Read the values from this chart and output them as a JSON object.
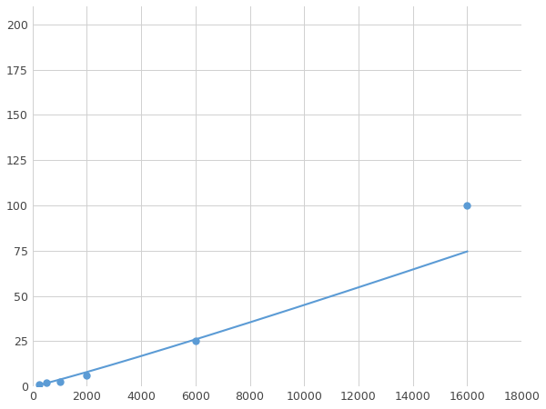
{
  "x": [
    250,
    500,
    1000,
    2000,
    6000,
    16000
  ],
  "y": [
    1.2,
    2.0,
    2.5,
    6.0,
    25.0,
    100.0
  ],
  "line_color": "#5b9bd5",
  "marker_color": "#5b9bd5",
  "marker_size": 5,
  "marker_style": "o",
  "line_width": 1.5,
  "xlim": [
    0,
    18000
  ],
  "ylim": [
    0,
    210
  ],
  "xticks": [
    0,
    2000,
    4000,
    6000,
    8000,
    10000,
    12000,
    14000,
    16000,
    18000
  ],
  "yticks": [
    0,
    25,
    50,
    75,
    100,
    125,
    150,
    175,
    200
  ],
  "grid_color": "#d0d0d0",
  "grid_linewidth": 0.7,
  "background_color": "#ffffff",
  "figure_background": "#ffffff",
  "tick_fontsize": 9,
  "tick_color": "#444444",
  "power_law_exp": 1.55
}
